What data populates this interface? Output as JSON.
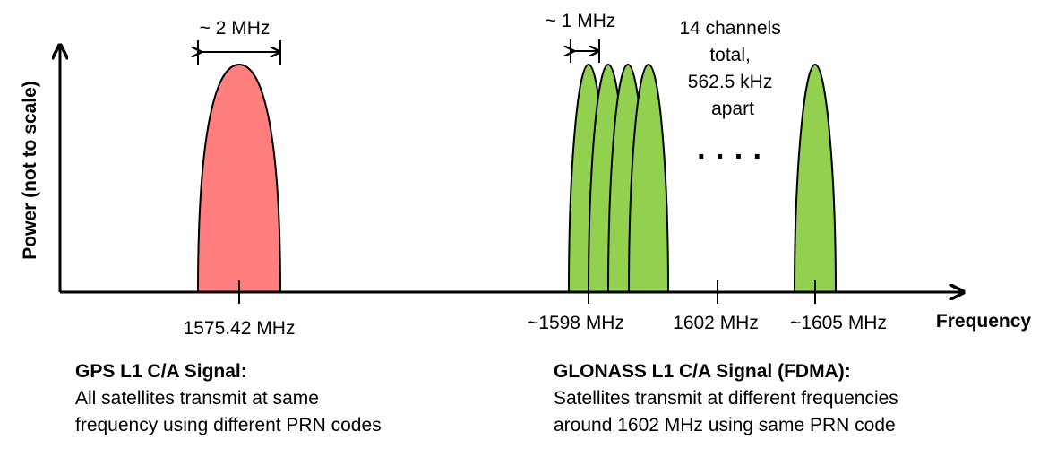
{
  "axes": {
    "y_label": "Power (not to scale)",
    "x_label": "Frequency"
  },
  "colors": {
    "gps": "#ff7f7f",
    "glonass": "#92d050",
    "stroke": "#000000"
  },
  "ticks": [
    {
      "label": "1575.42 MHz"
    },
    {
      "label": "~1598 MHz"
    },
    {
      "label": "1602 MHz"
    },
    {
      "label": "~1605 MHz"
    }
  ],
  "annotations": {
    "gps_bandwidth": "~ 2 MHz",
    "glonass_bandwidth": "~ 1 MHz",
    "channels_note": [
      "14 channels",
      "total,",
      "562.5 kHz",
      "apart"
    ],
    "ellipsis": "· · · ·"
  },
  "captions": {
    "gps": {
      "title": "GPS L1 C/A Signal:",
      "lines": [
        "All satellites transmit at same",
        "frequency using different PRN codes"
      ]
    },
    "glonass": {
      "title": "GLONASS L1 C/A Signal (FDMA):",
      "lines": [
        "Satellites transmit at different frequencies",
        "around 1602 MHz using same PRN code"
      ]
    }
  }
}
